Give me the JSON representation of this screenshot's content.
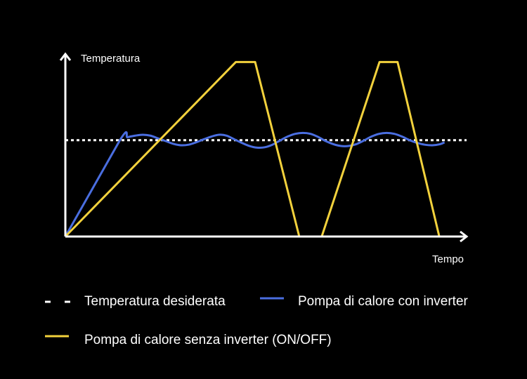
{
  "chart_data": {
    "type": "line",
    "title": "",
    "xlabel": "Tempo",
    "ylabel": "Temperatura",
    "xlim": [
      0,
      100
    ],
    "ylim": [
      0,
      100
    ],
    "grid": false,
    "legend_placement": "bottom",
    "series": [
      {
        "name": "Temperatura desiderata",
        "style": "dotted",
        "color": "#ffffff",
        "points": [
          [
            0,
            53
          ],
          [
            100,
            53
          ]
        ]
      },
      {
        "name": "Pompa di calore con inverter",
        "style": "wavy",
        "color": "#4a6ee0",
        "points": [
          [
            0,
            0
          ],
          [
            13.6,
            53
          ],
          [
            15.5,
            54.6
          ],
          [
            17.4,
            55.5
          ],
          [
            19.3,
            56
          ],
          [
            21.2,
            55.5
          ],
          [
            23.1,
            54
          ],
          [
            25,
            52.5
          ],
          [
            26.9,
            51
          ],
          [
            28.8,
            50.2
          ],
          [
            30.7,
            50.5
          ],
          [
            32.6,
            51.8
          ],
          [
            34.5,
            53.5
          ],
          [
            36.4,
            55
          ],
          [
            38.3,
            56
          ],
          [
            40.2,
            55.5
          ],
          [
            42.1,
            53.5
          ],
          [
            44,
            51.5
          ],
          [
            45.9,
            49.8
          ],
          [
            47.8,
            48.9
          ],
          [
            49.7,
            49.1
          ],
          [
            51.6,
            50.5
          ],
          [
            53.5,
            52.8
          ],
          [
            55.4,
            55
          ],
          [
            57.3,
            56.5
          ],
          [
            59.2,
            57
          ],
          [
            61.1,
            56.5
          ],
          [
            63,
            54.8
          ],
          [
            64.9,
            52.5
          ],
          [
            66.8,
            50.8
          ],
          [
            68.7,
            49.8
          ],
          [
            70.6,
            49.8
          ],
          [
            72.5,
            50.8
          ],
          [
            74.4,
            52.8
          ],
          [
            76.3,
            55
          ],
          [
            78.2,
            56.5
          ],
          [
            80.1,
            57
          ],
          [
            82,
            56.5
          ],
          [
            83.9,
            55
          ],
          [
            85.8,
            53
          ],
          [
            87.7,
            51.5
          ],
          [
            89.6,
            50.5
          ],
          [
            91.5,
            50.2
          ],
          [
            93.4,
            50.8
          ],
          [
            94.5,
            51.8
          ]
        ]
      },
      {
        "name": "Pompa di calore senza inverter (ON/OFF)",
        "style": "solid",
        "color": "#f2d13c",
        "points": [
          [
            0,
            0
          ],
          [
            42.5,
            96
          ],
          [
            47.3,
            96
          ],
          [
            58.3,
            0
          ],
          [
            63.9,
            0
          ],
          [
            78.3,
            96
          ],
          [
            82.8,
            96
          ],
          [
            93.2,
            0
          ]
        ]
      }
    ]
  }
}
